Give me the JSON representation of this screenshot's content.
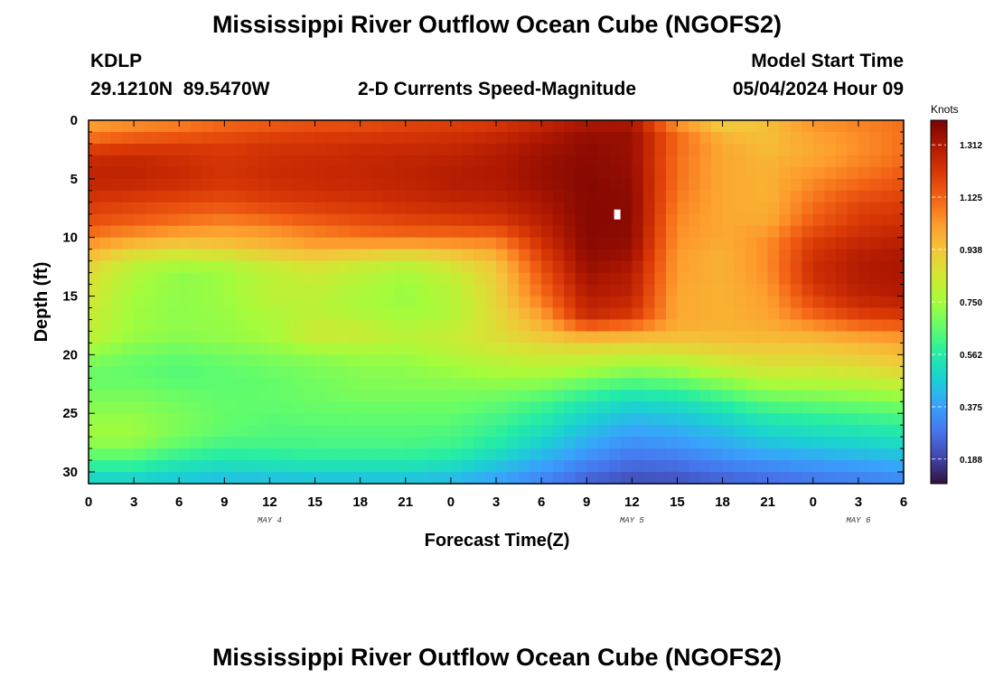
{
  "header": {
    "title": "Mississippi River Outflow Ocean Cube (NGOFS2)",
    "station": "KDLP",
    "location": "29.1210N  89.5470W",
    "subtitle": "2-D Currents Speed-Magnitude",
    "model_start_label": "Model Start Time",
    "model_start_value": "05/04/2024 Hour 09"
  },
  "footer": {
    "title": "Mississippi River Outflow Ocean Cube (NGOFS2)"
  },
  "chart_data": {
    "type": "heatmap",
    "variable": "2-D Currents Speed-Magnitude",
    "xlabel": "Forecast Time(Z)",
    "ylabel": "Depth (ft)",
    "x_tick_labels": [
      "0",
      "3",
      "6",
      "9",
      "12",
      "15",
      "18",
      "21",
      "0",
      "3",
      "6",
      "9",
      "12",
      "15",
      "18",
      "21",
      "0",
      "3",
      "6"
    ],
    "x_range_hours": [
      0,
      54
    ],
    "day_labels": [
      {
        "label": "MAY 4",
        "hour": 12
      },
      {
        "label": "MAY 5",
        "hour": 36
      },
      {
        "label": "MAY 6",
        "hour": 51
      }
    ],
    "y_ticks": [
      0,
      5,
      10,
      15,
      20,
      25,
      30
    ],
    "ylim": [
      0,
      31
    ],
    "y_inverted": true,
    "colorbar": {
      "unit": "Knots",
      "min": 0.1,
      "max": 1.4,
      "tick_labels": [
        "0.188",
        "0.375",
        "0.562",
        "0.750",
        "0.938",
        "1.125",
        "1.312"
      ],
      "tick_values": [
        0.188,
        0.375,
        0.562,
        0.75,
        0.938,
        1.125,
        1.312
      ],
      "colormap": [
        "#30123b",
        "#4145ab",
        "#4675ed",
        "#39a2fc",
        "#1bcfd4",
        "#24eca6",
        "#61fc6c",
        "#a4fc3b",
        "#d1e834",
        "#f3c63a",
        "#fe9b2d",
        "#f36315",
        "#d93806",
        "#b11901",
        "#7a0402"
      ]
    },
    "marker": {
      "hour": 35,
      "depth_ft": 8,
      "color": "#ffffff"
    },
    "grid_hours": [
      0,
      3,
      6,
      9,
      12,
      15,
      18,
      21,
      24,
      27,
      30,
      33,
      36,
      39,
      42,
      45,
      48,
      51,
      54
    ],
    "grid_depths_ft": [
      0,
      1,
      2,
      3,
      5,
      7,
      9,
      10,
      11,
      12,
      13,
      15,
      17,
      18,
      19,
      20,
      21,
      22,
      23,
      24,
      25,
      26,
      27,
      28,
      29,
      30,
      31
    ],
    "values_knots": [
      [
        1.0,
        1.02,
        1.05,
        1.1,
        1.12,
        1.14,
        1.15,
        1.17,
        1.18,
        1.2,
        1.25,
        1.3,
        1.3,
        1.0,
        0.9,
        0.95,
        1.05,
        1.08,
        1.1
      ],
      [
        1.05,
        1.1,
        1.12,
        1.15,
        1.18,
        1.2,
        1.2,
        1.22,
        1.23,
        1.25,
        1.3,
        1.35,
        1.35,
        1.1,
        0.95,
        0.95,
        1.02,
        1.05,
        1.1
      ],
      [
        1.15,
        1.18,
        1.2,
        1.2,
        1.22,
        1.22,
        1.24,
        1.24,
        1.25,
        1.28,
        1.32,
        1.36,
        1.35,
        1.12,
        1.0,
        0.95,
        1.0,
        1.05,
        1.1
      ],
      [
        1.25,
        1.26,
        1.24,
        1.22,
        1.24,
        1.25,
        1.26,
        1.27,
        1.28,
        1.3,
        1.34,
        1.37,
        1.35,
        1.1,
        1.0,
        0.97,
        1.0,
        1.05,
        1.1
      ],
      [
        1.28,
        1.28,
        1.26,
        1.23,
        1.25,
        1.26,
        1.27,
        1.28,
        1.3,
        1.31,
        1.35,
        1.38,
        1.36,
        1.1,
        1.0,
        0.98,
        1.05,
        1.1,
        1.15
      ],
      [
        1.22,
        1.2,
        1.18,
        1.17,
        1.2,
        1.22,
        1.23,
        1.25,
        1.27,
        1.28,
        1.32,
        1.38,
        1.37,
        1.08,
        1.0,
        0.98,
        1.1,
        1.18,
        1.2
      ],
      [
        1.15,
        1.12,
        1.08,
        1.05,
        1.08,
        1.12,
        1.15,
        1.17,
        1.18,
        1.2,
        1.28,
        1.38,
        1.37,
        1.05,
        1.0,
        1.0,
        1.15,
        1.22,
        1.25
      ],
      [
        1.08,
        1.02,
        0.98,
        0.98,
        1.0,
        1.05,
        1.08,
        1.1,
        1.1,
        1.1,
        1.25,
        1.38,
        1.36,
        1.05,
        1.0,
        1.05,
        1.2,
        1.25,
        1.28
      ],
      [
        1.0,
        0.92,
        0.9,
        0.92,
        0.96,
        1.0,
        0.98,
        0.95,
        0.98,
        1.02,
        1.22,
        1.37,
        1.35,
        1.03,
        0.98,
        1.05,
        1.22,
        1.28,
        1.3
      ],
      [
        0.92,
        0.82,
        0.78,
        0.8,
        0.85,
        0.88,
        0.85,
        0.82,
        0.88,
        0.95,
        1.18,
        1.36,
        1.33,
        1.02,
        0.98,
        1.05,
        1.24,
        1.3,
        1.32
      ],
      [
        0.88,
        0.78,
        0.72,
        0.74,
        0.8,
        0.84,
        0.8,
        0.76,
        0.82,
        0.92,
        1.15,
        1.34,
        1.3,
        1.02,
        0.98,
        1.05,
        1.25,
        1.3,
        1.32
      ],
      [
        0.85,
        0.75,
        0.72,
        0.74,
        0.8,
        0.8,
        0.76,
        0.73,
        0.78,
        0.9,
        1.1,
        1.3,
        1.28,
        1.0,
        0.98,
        1.02,
        1.2,
        1.28,
        1.3
      ],
      [
        0.82,
        0.74,
        0.72,
        0.73,
        0.76,
        0.8,
        0.78,
        0.75,
        0.78,
        0.88,
        1.0,
        1.25,
        1.2,
        1.0,
        0.98,
        1.0,
        1.1,
        1.18,
        1.2
      ],
      [
        0.82,
        0.74,
        0.72,
        0.73,
        0.76,
        0.85,
        0.84,
        0.8,
        0.82,
        0.88,
        0.95,
        1.05,
        1.02,
        0.98,
        0.97,
        0.98,
        1.0,
        1.05,
        1.08
      ],
      [
        0.78,
        0.72,
        0.7,
        0.72,
        0.74,
        0.8,
        0.8,
        0.78,
        0.82,
        0.86,
        0.9,
        0.92,
        0.92,
        0.92,
        0.94,
        0.95,
        0.95,
        0.98,
        1.0
      ],
      [
        0.72,
        0.68,
        0.66,
        0.68,
        0.7,
        0.72,
        0.74,
        0.74,
        0.78,
        0.82,
        0.84,
        0.84,
        0.82,
        0.84,
        0.88,
        0.9,
        0.9,
        0.92,
        0.95
      ],
      [
        0.68,
        0.66,
        0.64,
        0.66,
        0.68,
        0.7,
        0.72,
        0.72,
        0.75,
        0.78,
        0.8,
        0.78,
        0.74,
        0.76,
        0.82,
        0.86,
        0.86,
        0.88,
        0.92
      ],
      [
        0.66,
        0.66,
        0.64,
        0.65,
        0.66,
        0.68,
        0.7,
        0.71,
        0.72,
        0.74,
        0.74,
        0.7,
        0.66,
        0.68,
        0.74,
        0.8,
        0.8,
        0.82,
        0.85
      ],
      [
        0.68,
        0.68,
        0.66,
        0.65,
        0.66,
        0.68,
        0.7,
        0.7,
        0.7,
        0.7,
        0.68,
        0.62,
        0.58,
        0.6,
        0.66,
        0.72,
        0.74,
        0.76,
        0.78
      ],
      [
        0.7,
        0.7,
        0.68,
        0.66,
        0.66,
        0.67,
        0.68,
        0.68,
        0.68,
        0.66,
        0.62,
        0.56,
        0.5,
        0.52,
        0.58,
        0.65,
        0.66,
        0.68,
        0.7
      ],
      [
        0.72,
        0.72,
        0.69,
        0.66,
        0.65,
        0.66,
        0.66,
        0.66,
        0.66,
        0.63,
        0.58,
        0.5,
        0.45,
        0.47,
        0.52,
        0.58,
        0.6,
        0.62,
        0.64
      ],
      [
        0.74,
        0.74,
        0.7,
        0.66,
        0.64,
        0.64,
        0.65,
        0.65,
        0.64,
        0.6,
        0.54,
        0.46,
        0.4,
        0.42,
        0.46,
        0.52,
        0.54,
        0.56,
        0.58
      ],
      [
        0.74,
        0.74,
        0.68,
        0.64,
        0.63,
        0.63,
        0.63,
        0.63,
        0.62,
        0.58,
        0.5,
        0.42,
        0.36,
        0.38,
        0.42,
        0.48,
        0.5,
        0.52,
        0.54
      ],
      [
        0.7,
        0.7,
        0.64,
        0.6,
        0.6,
        0.61,
        0.61,
        0.61,
        0.6,
        0.54,
        0.46,
        0.38,
        0.32,
        0.34,
        0.38,
        0.42,
        0.44,
        0.46,
        0.48
      ],
      [
        0.62,
        0.62,
        0.56,
        0.54,
        0.55,
        0.56,
        0.56,
        0.56,
        0.54,
        0.48,
        0.4,
        0.33,
        0.28,
        0.29,
        0.33,
        0.36,
        0.38,
        0.4,
        0.42
      ],
      [
        0.54,
        0.54,
        0.5,
        0.48,
        0.49,
        0.5,
        0.5,
        0.5,
        0.48,
        0.42,
        0.36,
        0.28,
        0.24,
        0.25,
        0.28,
        0.3,
        0.32,
        0.34,
        0.36
      ],
      [
        0.46,
        0.46,
        0.44,
        0.42,
        0.42,
        0.42,
        0.42,
        0.42,
        0.4,
        0.36,
        0.3,
        0.24,
        0.2,
        0.21,
        0.24,
        0.26,
        0.28,
        0.3,
        0.32
      ]
    ]
  }
}
